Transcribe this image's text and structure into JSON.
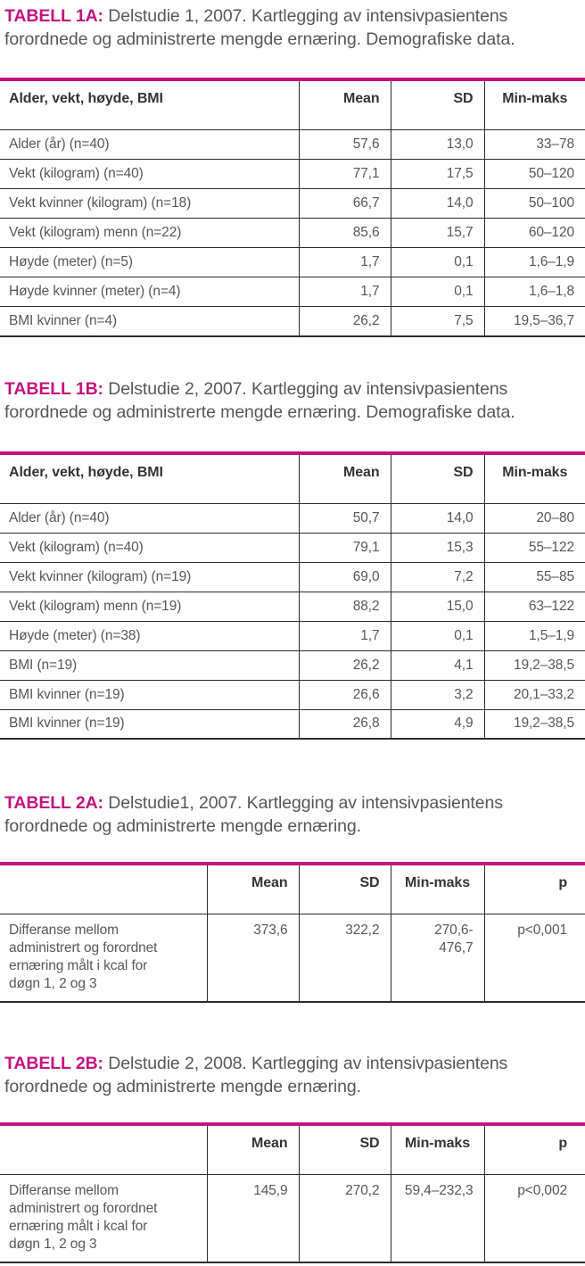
{
  "accent_color": "#c31480",
  "text_color": "#57575a",
  "tables": [
    {
      "tag": "TABELL 1A:",
      "title": "Delstudie 1, 2007. Kartlegging av intensivpasientens forordnede og administrerte mengde ernæring. Demografiske data.",
      "columns": [
        "Alder, vekt, høyde, BMI",
        "Mean",
        "SD",
        "Min-maks"
      ],
      "rows": [
        [
          "Alder (år) (n=40)",
          "57,6",
          "13,0",
          "33–78"
        ],
        [
          "Vekt (kilogram) (n=40)",
          "77,1",
          "17,5",
          "50–120"
        ],
        [
          "Vekt kvinner (kilogram) (n=18)",
          "66,7",
          "14,0",
          "50–100"
        ],
        [
          "Vekt (kilogram) menn (n=22)",
          "85,6",
          "15,7",
          "60–120"
        ],
        [
          "Høyde (meter) (n=5)",
          "1,7",
          "0,1",
          "1,6–1,9"
        ],
        [
          "Høyde kvinner (meter) (n=4)",
          "1,7",
          "0,1",
          "1,6–1,8"
        ],
        [
          "BMI kvinner (n=4)",
          "26,2",
          "7,5",
          "19,5–36,7"
        ]
      ]
    },
    {
      "tag": "TABELL 1B:",
      "title": "Delstudie 2, 2007. Kartlegging av intensivpasientens forordnede og administrerte mengde ernæring. Demografiske data.",
      "columns": [
        "Alder, vekt, høyde, BMI",
        "Mean",
        "SD",
        "Min-maks"
      ],
      "rows": [
        [
          "Alder (år) (n=40)",
          "50,7",
          "14,0",
          "20–80"
        ],
        [
          "Vekt (kilogram) (n=40)",
          "79,1",
          "15,3",
          "55–122"
        ],
        [
          "Vekt kvinner (kilogram) (n=19)",
          "69,0",
          "7,2",
          "55–85"
        ],
        [
          "Vekt (kilogram) menn (n=19)",
          "88,2",
          "15,0",
          "63–122"
        ],
        [
          "Høyde (meter) (n=38)",
          "1,7",
          "0,1",
          "1,5–1,9"
        ],
        [
          "BMI (n=19)",
          "26,2",
          "4,1",
          "19,2–38,5"
        ],
        [
          "BMI kvinner (n=19)",
          "26,6",
          "3,2",
          "20,1–33,2"
        ],
        [
          "BMI kvinner (n=19)",
          "26,8",
          "4,9",
          "19,2–38,5"
        ]
      ]
    },
    {
      "tag": "TABELL 2A:",
      "title": "Delstudie1, 2007. Kartlegging av intensivpasientens forordnede og administrerte mengde ernæring.",
      "columns": [
        "",
        "Mean",
        "SD",
        "Min-maks",
        "p"
      ],
      "rows": [
        [
          "Differanse mellom\nadministrert og forordnet\nernæring målt i kcal for\ndøgn 1, 2 og 3",
          "373,6",
          "322,2",
          "270,6-\n476,7",
          "p<0,001"
        ]
      ]
    },
    {
      "tag": "TABELL 2B:",
      "title": "Delstudie 2, 2008. Kartlegging av intensivpasientens forordnede og administrerte mengde ernæring.",
      "columns": [
        "",
        "Mean",
        "SD",
        "Min-maks",
        "p"
      ],
      "rows": [
        [
          "Differanse mellom\nadministrert og forordnet\nernæring målt i kcal for\ndøgn 1, 2 og 3",
          "145,9",
          "270,2",
          "59,4–232,3",
          "p<0,002"
        ]
      ]
    }
  ]
}
